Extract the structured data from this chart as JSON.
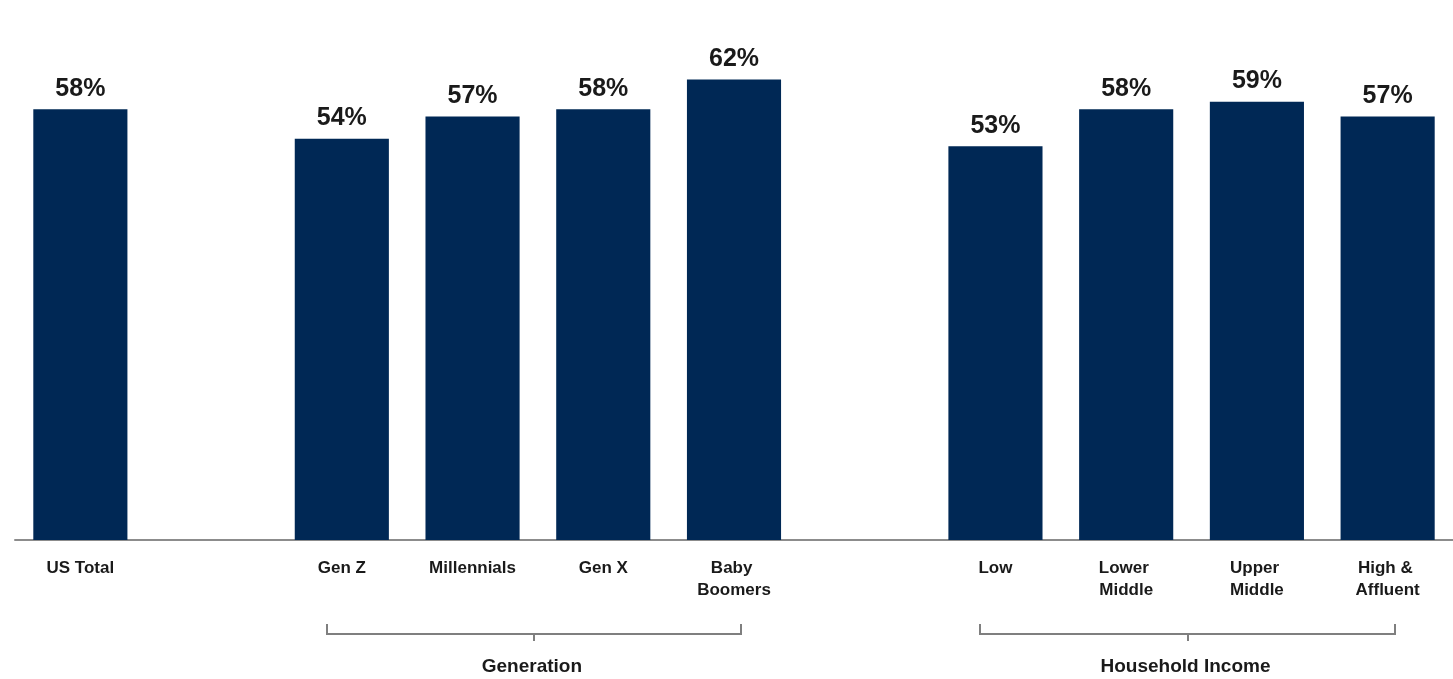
{
  "chart_data": {
    "type": "bar",
    "categories": [
      "US Total",
      null,
      "Gen Z",
      "Millennials",
      "Gen X",
      "Baby Boomers",
      null,
      "Low",
      "Lower Middle",
      "Upper Middle",
      "High & Affluent"
    ],
    "values": [
      58,
      null,
      54,
      57,
      58,
      62,
      null,
      53,
      58,
      59,
      57
    ],
    "value_labels": [
      "58%",
      null,
      "54%",
      "57%",
      "58%",
      "62%",
      null,
      "53%",
      "58%",
      "59%",
      "57%"
    ],
    "color": "#002855",
    "annotations": [
      "Generation",
      "Household Income"
    ]
  }
}
